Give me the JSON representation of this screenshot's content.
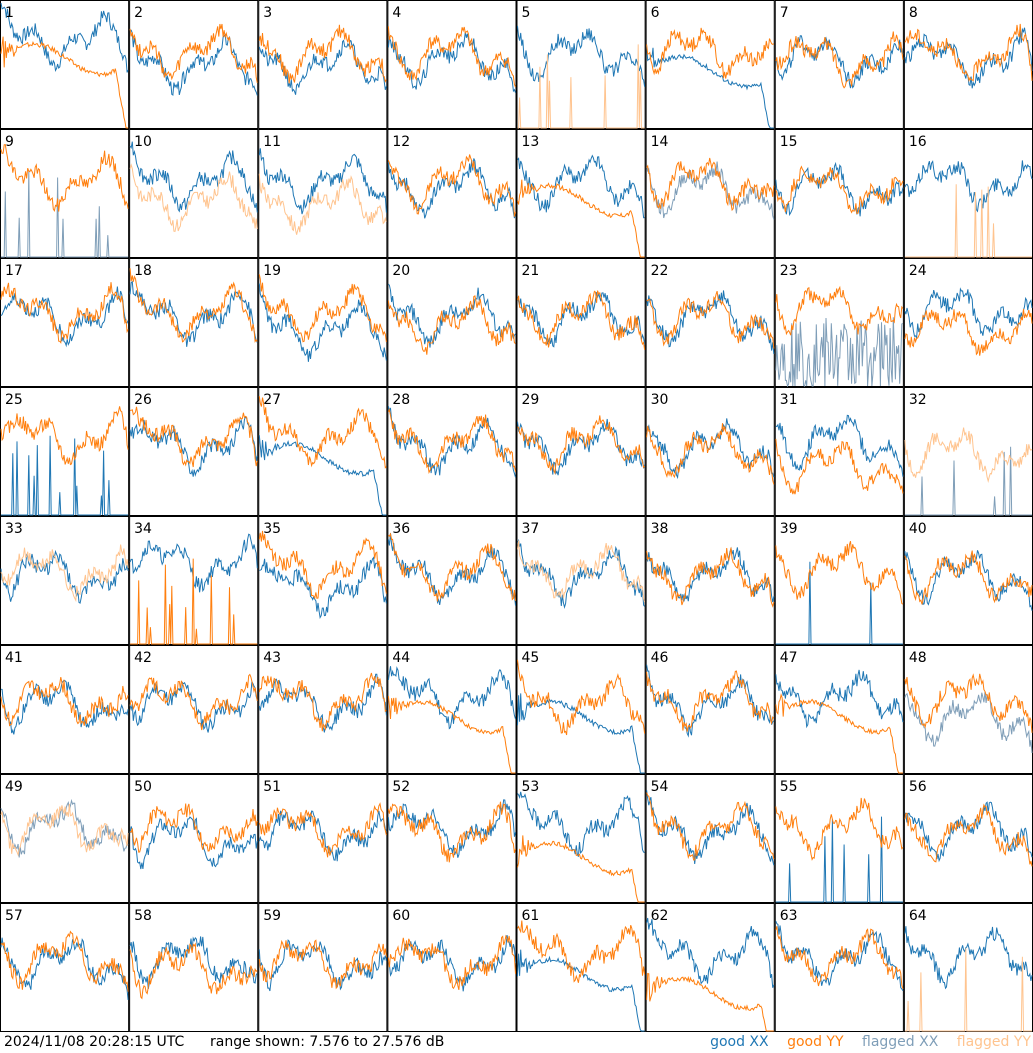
{
  "footer": {
    "timestamp": "2024/11/08 20:28:15 UTC",
    "range_text": "range shown: 7.576 to 27.576 dB"
  },
  "legend": {
    "good_xx": "good XX",
    "good_yy": "good YY",
    "flagged_xx": "flagged XX",
    "flagged_yy": "flagged YY"
  },
  "colors": {
    "good_xx": "#1f77b4",
    "good_yy": "#ff7f0e",
    "flagged_xx": "#7f9eb8",
    "flagged_yy": "#ffc48f"
  },
  "chart_data": {
    "type": "line",
    "layout": "8x8 grid of small multiples",
    "range_db": [
      7.576,
      27.576
    ],
    "panels": [
      {
        "id": 1,
        "xx": {
          "shape": "bandpass",
          "level": 0.7,
          "status": "good"
        },
        "yy": {
          "shape": "rolloff",
          "level": 0.55,
          "status": "good"
        }
      },
      {
        "id": 2,
        "xx": {
          "shape": "bandpass",
          "level": 0.5,
          "status": "good"
        },
        "yy": {
          "shape": "bandpass",
          "level": 0.6,
          "status": "good"
        }
      },
      {
        "id": 3,
        "xx": {
          "shape": "bandpass",
          "level": 0.5,
          "status": "good"
        },
        "yy": {
          "shape": "bandpass",
          "level": 0.6,
          "status": "good"
        }
      },
      {
        "id": 4,
        "xx": {
          "shape": "bandpass",
          "level": 0.55,
          "status": "good"
        },
        "yy": {
          "shape": "bandpass",
          "level": 0.6,
          "status": "good"
        }
      },
      {
        "id": 5,
        "xx": {
          "shape": "bandpass",
          "level": 0.6,
          "status": "good"
        },
        "yy": {
          "shape": "spikes",
          "level": 0.0,
          "status": "flagged"
        }
      },
      {
        "id": 6,
        "xx": {
          "shape": "rolloff",
          "level": 0.45,
          "status": "good"
        },
        "yy": {
          "shape": "bandpass",
          "level": 0.62,
          "status": "good"
        }
      },
      {
        "id": 7,
        "xx": {
          "shape": "bandpass",
          "level": 0.55,
          "status": "good"
        },
        "yy": {
          "shape": "bandpass",
          "level": 0.55,
          "status": "good"
        }
      },
      {
        "id": 8,
        "xx": {
          "shape": "bandpass",
          "level": 0.55,
          "status": "good"
        },
        "yy": {
          "shape": "bandpass",
          "level": 0.58,
          "status": "good"
        }
      },
      {
        "id": 9,
        "xx": {
          "shape": "spikes",
          "level": 0.0,
          "status": "flagged"
        },
        "yy": {
          "shape": "bandpass",
          "level": 0.6,
          "status": "good"
        }
      },
      {
        "id": 10,
        "xx": {
          "shape": "bandpass",
          "level": 0.6,
          "status": "good"
        },
        "yy": {
          "shape": "bandpass",
          "level": 0.45,
          "status": "flagged"
        }
      },
      {
        "id": 11,
        "xx": {
          "shape": "bandpass",
          "level": 0.6,
          "status": "good"
        },
        "yy": {
          "shape": "bandpass",
          "level": 0.42,
          "status": "flagged"
        }
      },
      {
        "id": 12,
        "xx": {
          "shape": "bandpass",
          "level": 0.55,
          "status": "good"
        },
        "yy": {
          "shape": "bandpass",
          "level": 0.6,
          "status": "good"
        }
      },
      {
        "id": 13,
        "xx": {
          "shape": "bandpass",
          "level": 0.6,
          "status": "good"
        },
        "yy": {
          "shape": "rolloff",
          "level": 0.45,
          "status": "good"
        }
      },
      {
        "id": 14,
        "xx": {
          "shape": "bandpass",
          "level": 0.55,
          "status": "flagged"
        },
        "yy": {
          "shape": "bandpass",
          "level": 0.6,
          "status": "good"
        }
      },
      {
        "id": 15,
        "xx": {
          "shape": "bandpass",
          "level": 0.55,
          "status": "good"
        },
        "yy": {
          "shape": "bandpass",
          "level": 0.55,
          "status": "good"
        }
      },
      {
        "id": 16,
        "xx": {
          "shape": "bandpass",
          "level": 0.6,
          "status": "good"
        },
        "yy": {
          "shape": "spikes",
          "level": 0.0,
          "status": "flagged"
        }
      },
      {
        "id": 17,
        "xx": {
          "shape": "bandpass",
          "level": 0.55,
          "status": "good"
        },
        "yy": {
          "shape": "bandpass",
          "level": 0.58,
          "status": "good"
        }
      },
      {
        "id": 18,
        "xx": {
          "shape": "bandpass",
          "level": 0.55,
          "status": "good"
        },
        "yy": {
          "shape": "bandpass",
          "level": 0.58,
          "status": "good"
        }
      },
      {
        "id": 19,
        "xx": {
          "shape": "bandpass",
          "level": 0.45,
          "status": "good"
        },
        "yy": {
          "shape": "bandpass",
          "level": 0.58,
          "status": "good"
        }
      },
      {
        "id": 20,
        "xx": {
          "shape": "bandpass",
          "level": 0.55,
          "status": "good"
        },
        "yy": {
          "shape": "bandpass",
          "level": 0.5,
          "status": "good"
        }
      },
      {
        "id": 21,
        "xx": {
          "shape": "bandpass",
          "level": 0.55,
          "status": "good"
        },
        "yy": {
          "shape": "bandpass",
          "level": 0.55,
          "status": "good"
        }
      },
      {
        "id": 22,
        "xx": {
          "shape": "bandpass",
          "level": 0.55,
          "status": "good"
        },
        "yy": {
          "shape": "bandpass",
          "level": 0.55,
          "status": "good"
        }
      },
      {
        "id": 23,
        "xx": {
          "shape": "noise",
          "level": 0.25,
          "status": "flagged"
        },
        "yy": {
          "shape": "bandpass",
          "level": 0.62,
          "status": "good"
        }
      },
      {
        "id": 24,
        "xx": {
          "shape": "bandpass",
          "level": 0.6,
          "status": "good"
        },
        "yy": {
          "shape": "bandpass",
          "level": 0.45,
          "status": "good"
        }
      },
      {
        "id": 25,
        "xx": {
          "shape": "spikes",
          "level": 0.0,
          "status": "good"
        },
        "yy": {
          "shape": "bandpass",
          "level": 0.62,
          "status": "good"
        }
      },
      {
        "id": 26,
        "xx": {
          "shape": "bandpass",
          "level": 0.55,
          "status": "good"
        },
        "yy": {
          "shape": "bandpass",
          "level": 0.6,
          "status": "good"
        }
      },
      {
        "id": 27,
        "xx": {
          "shape": "rolloff",
          "level": 0.45,
          "status": "good"
        },
        "yy": {
          "shape": "bandpass",
          "level": 0.62,
          "status": "good"
        }
      },
      {
        "id": 28,
        "xx": {
          "shape": "bandpass",
          "level": 0.55,
          "status": "good"
        },
        "yy": {
          "shape": "bandpass",
          "level": 0.58,
          "status": "good"
        }
      },
      {
        "id": 29,
        "xx": {
          "shape": "bandpass",
          "level": 0.55,
          "status": "good"
        },
        "yy": {
          "shape": "bandpass",
          "level": 0.58,
          "status": "good"
        }
      },
      {
        "id": 30,
        "xx": {
          "shape": "bandpass",
          "level": 0.55,
          "status": "good"
        },
        "yy": {
          "shape": "bandpass",
          "level": 0.52,
          "status": "good"
        }
      },
      {
        "id": 31,
        "xx": {
          "shape": "bandpass",
          "level": 0.6,
          "status": "good"
        },
        "yy": {
          "shape": "bandpass",
          "level": 0.4,
          "status": "good"
        }
      },
      {
        "id": 32,
        "xx": {
          "shape": "spikes",
          "level": 0.0,
          "status": "flagged"
        },
        "yy": {
          "shape": "bandpass",
          "level": 0.5,
          "status": "flagged"
        }
      },
      {
        "id": 33,
        "xx": {
          "shape": "bandpass",
          "level": 0.55,
          "status": "good"
        },
        "yy": {
          "shape": "bandpass",
          "level": 0.58,
          "status": "flagged"
        }
      },
      {
        "id": 34,
        "xx": {
          "shape": "bandpass",
          "level": 0.65,
          "status": "good"
        },
        "yy": {
          "shape": "spikes",
          "level": 0.0,
          "status": "good"
        }
      },
      {
        "id": 35,
        "xx": {
          "shape": "bandpass",
          "level": 0.45,
          "status": "good"
        },
        "yy": {
          "shape": "bandpass",
          "level": 0.6,
          "status": "good"
        }
      },
      {
        "id": 36,
        "xx": {
          "shape": "bandpass",
          "level": 0.55,
          "status": "good"
        },
        "yy": {
          "shape": "bandpass",
          "level": 0.58,
          "status": "good"
        }
      },
      {
        "id": 37,
        "xx": {
          "shape": "bandpass",
          "level": 0.55,
          "status": "good"
        },
        "yy": {
          "shape": "bandpass",
          "level": 0.58,
          "status": "flagged"
        }
      },
      {
        "id": 38,
        "xx": {
          "shape": "bandpass",
          "level": 0.55,
          "status": "good"
        },
        "yy": {
          "shape": "bandpass",
          "level": 0.55,
          "status": "good"
        }
      },
      {
        "id": 39,
        "xx": {
          "shape": "spikes",
          "level": 0.0,
          "status": "good"
        },
        "yy": {
          "shape": "bandpass",
          "level": 0.6,
          "status": "good"
        }
      },
      {
        "id": 40,
        "xx": {
          "shape": "bandpass",
          "level": 0.55,
          "status": "good"
        },
        "yy": {
          "shape": "bandpass",
          "level": 0.55,
          "status": "good"
        }
      },
      {
        "id": 41,
        "xx": {
          "shape": "bandpass",
          "level": 0.55,
          "status": "good"
        },
        "yy": {
          "shape": "bandpass",
          "level": 0.58,
          "status": "good"
        }
      },
      {
        "id": 42,
        "xx": {
          "shape": "bandpass",
          "level": 0.55,
          "status": "good"
        },
        "yy": {
          "shape": "bandpass",
          "level": 0.58,
          "status": "good"
        }
      },
      {
        "id": 43,
        "xx": {
          "shape": "bandpass",
          "level": 0.55,
          "status": "good"
        },
        "yy": {
          "shape": "bandpass",
          "level": 0.58,
          "status": "good"
        }
      },
      {
        "id": 44,
        "xx": {
          "shape": "bandpass",
          "level": 0.6,
          "status": "good"
        },
        "yy": {
          "shape": "rolloff",
          "level": 0.45,
          "status": "good"
        }
      },
      {
        "id": 45,
        "xx": {
          "shape": "rolloff",
          "level": 0.45,
          "status": "good"
        },
        "yy": {
          "shape": "bandpass",
          "level": 0.55,
          "status": "good"
        }
      },
      {
        "id": 46,
        "xx": {
          "shape": "bandpass",
          "level": 0.55,
          "status": "good"
        },
        "yy": {
          "shape": "bandpass",
          "level": 0.58,
          "status": "good"
        }
      },
      {
        "id": 47,
        "xx": {
          "shape": "bandpass",
          "level": 0.6,
          "status": "good"
        },
        "yy": {
          "shape": "rolloff",
          "level": 0.45,
          "status": "good"
        }
      },
      {
        "id": 48,
        "xx": {
          "shape": "bandpass",
          "level": 0.45,
          "status": "flagged"
        },
        "yy": {
          "shape": "bandpass",
          "level": 0.6,
          "status": "good"
        }
      },
      {
        "id": 49,
        "xx": {
          "shape": "bandpass",
          "level": 0.6,
          "status": "flagged"
        },
        "yy": {
          "shape": "bandpass",
          "level": 0.6,
          "status": "flagged"
        }
      },
      {
        "id": 50,
        "xx": {
          "shape": "bandpass",
          "level": 0.5,
          "status": "good"
        },
        "yy": {
          "shape": "bandpass",
          "level": 0.6,
          "status": "good"
        }
      },
      {
        "id": 51,
        "xx": {
          "shape": "bandpass",
          "level": 0.55,
          "status": "good"
        },
        "yy": {
          "shape": "bandpass",
          "level": 0.58,
          "status": "good"
        }
      },
      {
        "id": 52,
        "xx": {
          "shape": "bandpass",
          "level": 0.58,
          "status": "good"
        },
        "yy": {
          "shape": "bandpass",
          "level": 0.55,
          "status": "good"
        }
      },
      {
        "id": 53,
        "xx": {
          "shape": "bandpass",
          "level": 0.6,
          "status": "good"
        },
        "yy": {
          "shape": "rolloff",
          "level": 0.35,
          "status": "good"
        }
      },
      {
        "id": 54,
        "xx": {
          "shape": "bandpass",
          "level": 0.55,
          "status": "good"
        },
        "yy": {
          "shape": "bandpass",
          "level": 0.58,
          "status": "good"
        }
      },
      {
        "id": 55,
        "xx": {
          "shape": "spikes",
          "level": 0.0,
          "status": "good"
        },
        "yy": {
          "shape": "bandpass",
          "level": 0.6,
          "status": "good"
        }
      },
      {
        "id": 56,
        "xx": {
          "shape": "bandpass",
          "level": 0.58,
          "status": "good"
        },
        "yy": {
          "shape": "bandpass",
          "level": 0.55,
          "status": "good"
        }
      },
      {
        "id": 57,
        "xx": {
          "shape": "bandpass",
          "level": 0.55,
          "status": "good"
        },
        "yy": {
          "shape": "bandpass",
          "level": 0.58,
          "status": "good"
        }
      },
      {
        "id": 58,
        "xx": {
          "shape": "bandpass",
          "level": 0.58,
          "status": "good"
        },
        "yy": {
          "shape": "bandpass",
          "level": 0.5,
          "status": "good"
        }
      },
      {
        "id": 59,
        "xx": {
          "shape": "bandpass",
          "level": 0.55,
          "status": "good"
        },
        "yy": {
          "shape": "bandpass",
          "level": 0.55,
          "status": "good"
        }
      },
      {
        "id": 60,
        "xx": {
          "shape": "bandpass",
          "level": 0.55,
          "status": "good"
        },
        "yy": {
          "shape": "bandpass",
          "level": 0.55,
          "status": "good"
        }
      },
      {
        "id": 61,
        "xx": {
          "shape": "rolloff",
          "level": 0.45,
          "status": "good"
        },
        "yy": {
          "shape": "bandpass",
          "level": 0.62,
          "status": "good"
        }
      },
      {
        "id": 62,
        "xx": {
          "shape": "bandpass",
          "level": 0.6,
          "status": "good"
        },
        "yy": {
          "shape": "rolloff",
          "level": 0.3,
          "status": "good"
        }
      },
      {
        "id": 63,
        "xx": {
          "shape": "bandpass",
          "level": 0.58,
          "status": "good"
        },
        "yy": {
          "shape": "bandpass",
          "level": 0.58,
          "status": "good"
        }
      },
      {
        "id": 64,
        "xx": {
          "shape": "bandpass",
          "level": 0.6,
          "status": "good"
        },
        "yy": {
          "shape": "spikes",
          "level": 0.0,
          "status": "flagged"
        }
      }
    ]
  }
}
